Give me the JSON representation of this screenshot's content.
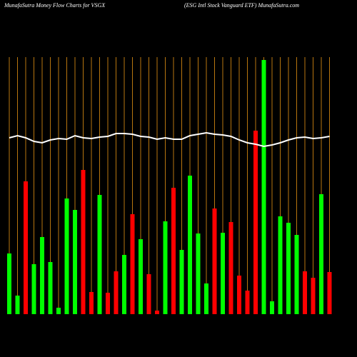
{
  "chart_data": {
    "type": "bar",
    "title": "MunafaSutra  Money Flow  Charts for VSGX",
    "subtitle": "(ESG Intl Stock Vanguard ETF) MunafaSutra.com",
    "ylim": [
      0,
      360
    ],
    "grid_color": "#b8760f",
    "values": [
      85,
      26,
      186,
      70,
      108,
      73,
      9,
      162,
      146,
      202,
      31,
      167,
      30,
      60,
      83,
      140,
      105,
      56,
      5,
      130,
      177,
      90,
      194,
      113,
      43,
      148,
      114,
      129,
      54,
      33,
      257,
      356,
      18,
      137,
      128,
      111,
      60,
      51,
      168,
      59
    ],
    "colors": [
      "#00ff00",
      "#00ff00",
      "#ff0000",
      "#00ff00",
      "#00ff00",
      "#00ff00",
      "#00ff00",
      "#00ff00",
      "#00ff00",
      "#ff0000",
      "#ff0000",
      "#00ff00",
      "#ff0000",
      "#ff0000",
      "#00ff00",
      "#ff0000",
      "#00ff00",
      "#ff0000",
      "#ff0000",
      "#00ff00",
      "#ff0000",
      "#00ff00",
      "#00ff00",
      "#00ff00",
      "#00ff00",
      "#ff0000",
      "#00ff00",
      "#ff0000",
      "#ff0000",
      "#ff0000",
      "#ff0000",
      "#00ff00",
      "#00ff00",
      "#00ff00",
      "#00ff00",
      "#00ff00",
      "#ff0000",
      "#ff0000",
      "#00ff00",
      "#ff0000"
    ],
    "line": {
      "color": "#ffffff",
      "values": [
        247,
        250,
        247,
        242,
        240,
        244,
        246,
        245,
        250,
        247,
        246,
        248,
        249,
        253,
        253,
        252,
        249,
        248,
        245,
        247,
        245,
        245,
        250,
        252,
        254,
        252,
        251,
        249,
        244,
        240,
        238,
        235,
        237,
        240,
        244,
        247,
        248,
        246,
        247,
        249
      ]
    }
  }
}
